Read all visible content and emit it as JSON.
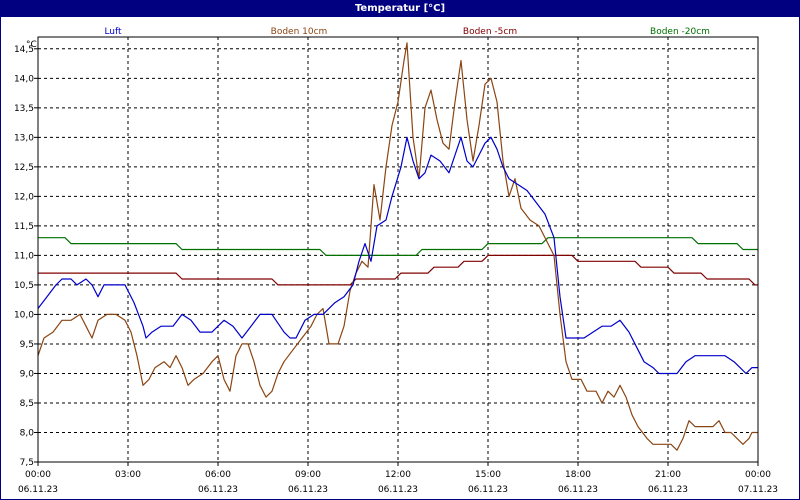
{
  "window": {
    "title": "Temperatur [°C]"
  },
  "chart_data": {
    "type": "line",
    "title": "Temperatur [°C]",
    "ylabel": "°C",
    "ylim": [
      7.5,
      14.7
    ],
    "yticks": [
      "14,5",
      "14,0",
      "13,5",
      "13,0",
      "12,5",
      "12,0",
      "11,5",
      "11,0",
      "10,5",
      "10,0",
      "9,5",
      "9,0",
      "8,5",
      "8,0",
      "7,5"
    ],
    "xlim": [
      0,
      24
    ],
    "xticks": [
      {
        "time": "00:00",
        "date": "06.11.23"
      },
      {
        "time": "03:00",
        "date": ""
      },
      {
        "time": "06:00",
        "date": "06.11.23"
      },
      {
        "time": "09:00",
        "date": "06.11.23"
      },
      {
        "time": "12:00",
        "date": "06.11.23"
      },
      {
        "time": "15:00",
        "date": "06.11.23"
      },
      {
        "time": "18:00",
        "date": "06.11.23"
      },
      {
        "time": "21:00",
        "date": "06.11.23"
      },
      {
        "time": "00:00",
        "date": "07.11.23"
      }
    ],
    "grid": true,
    "legend_position": "top",
    "series": [
      {
        "name": "Luft",
        "color": "#0000cc",
        "points": [
          [
            0,
            10.1
          ],
          [
            0.3,
            10.3
          ],
          [
            0.6,
            10.5
          ],
          [
            0.8,
            10.6
          ],
          [
            1.1,
            10.6
          ],
          [
            1.3,
            10.5
          ],
          [
            1.6,
            10.6
          ],
          [
            1.8,
            10.5
          ],
          [
            2.0,
            10.3
          ],
          [
            2.2,
            10.5
          ],
          [
            2.6,
            10.5
          ],
          [
            2.9,
            10.5
          ],
          [
            3.0,
            10.4
          ],
          [
            3.2,
            10.2
          ],
          [
            3.5,
            9.8
          ],
          [
            3.6,
            9.6
          ],
          [
            3.8,
            9.7
          ],
          [
            4.1,
            9.8
          ],
          [
            4.5,
            9.8
          ],
          [
            4.8,
            10.0
          ],
          [
            5.1,
            9.9
          ],
          [
            5.4,
            9.7
          ],
          [
            5.8,
            9.7
          ],
          [
            6.2,
            9.9
          ],
          [
            6.5,
            9.8
          ],
          [
            6.8,
            9.6
          ],
          [
            7.1,
            9.8
          ],
          [
            7.4,
            10.0
          ],
          [
            7.8,
            10.0
          ],
          [
            8.2,
            9.7
          ],
          [
            8.4,
            9.6
          ],
          [
            8.6,
            9.6
          ],
          [
            8.9,
            9.9
          ],
          [
            9.2,
            10.0
          ],
          [
            9.5,
            10.0
          ],
          [
            9.9,
            10.2
          ],
          [
            10.2,
            10.3
          ],
          [
            10.5,
            10.5
          ],
          [
            10.7,
            10.9
          ],
          [
            10.9,
            11.2
          ],
          [
            11.1,
            10.9
          ],
          [
            11.3,
            11.5
          ],
          [
            11.6,
            11.6
          ],
          [
            11.8,
            12.0
          ],
          [
            12.1,
            12.5
          ],
          [
            12.3,
            13.0
          ],
          [
            12.5,
            12.6
          ],
          [
            12.7,
            12.3
          ],
          [
            12.9,
            12.4
          ],
          [
            13.1,
            12.7
          ],
          [
            13.4,
            12.6
          ],
          [
            13.7,
            12.4
          ],
          [
            13.9,
            12.7
          ],
          [
            14.1,
            13.0
          ],
          [
            14.3,
            12.6
          ],
          [
            14.5,
            12.5
          ],
          [
            14.7,
            12.7
          ],
          [
            14.9,
            12.9
          ],
          [
            15.1,
            13.0
          ],
          [
            15.3,
            12.8
          ],
          [
            15.5,
            12.5
          ],
          [
            15.7,
            12.3
          ],
          [
            16.0,
            12.2
          ],
          [
            16.3,
            12.1
          ],
          [
            16.6,
            11.9
          ],
          [
            16.9,
            11.7
          ],
          [
            17.2,
            11.3
          ],
          [
            17.4,
            10.3
          ],
          [
            17.6,
            9.6
          ],
          [
            17.9,
            9.6
          ],
          [
            18.2,
            9.6
          ],
          [
            18.5,
            9.7
          ],
          [
            18.8,
            9.8
          ],
          [
            19.1,
            9.8
          ],
          [
            19.4,
            9.9
          ],
          [
            19.7,
            9.7
          ],
          [
            20.0,
            9.4
          ],
          [
            20.2,
            9.2
          ],
          [
            20.5,
            9.1
          ],
          [
            20.7,
            9.0
          ],
          [
            21.0,
            9.0
          ],
          [
            21.3,
            9.0
          ],
          [
            21.6,
            9.2
          ],
          [
            21.9,
            9.3
          ],
          [
            22.3,
            9.3
          ],
          [
            22.6,
            9.3
          ],
          [
            22.9,
            9.3
          ],
          [
            23.2,
            9.2
          ],
          [
            23.4,
            9.1
          ],
          [
            23.6,
            9.0
          ],
          [
            23.8,
            9.1
          ],
          [
            24,
            9.1
          ]
        ]
      },
      {
        "name": "Boden 10cm",
        "color": "#8b4513",
        "points": [
          [
            0,
            9.3
          ],
          [
            0.2,
            9.6
          ],
          [
            0.5,
            9.7
          ],
          [
            0.8,
            9.9
          ],
          [
            1.1,
            9.9
          ],
          [
            1.4,
            10.0
          ],
          [
            1.6,
            9.8
          ],
          [
            1.8,
            9.6
          ],
          [
            2.0,
            9.9
          ],
          [
            2.3,
            10.0
          ],
          [
            2.6,
            10.0
          ],
          [
            2.9,
            9.9
          ],
          [
            3.1,
            9.7
          ],
          [
            3.3,
            9.3
          ],
          [
            3.5,
            8.8
          ],
          [
            3.7,
            8.9
          ],
          [
            3.9,
            9.1
          ],
          [
            4.2,
            9.2
          ],
          [
            4.4,
            9.1
          ],
          [
            4.6,
            9.3
          ],
          [
            4.8,
            9.1
          ],
          [
            5.0,
            8.8
          ],
          [
            5.2,
            8.9
          ],
          [
            5.5,
            9.0
          ],
          [
            5.8,
            9.2
          ],
          [
            6.0,
            9.3
          ],
          [
            6.2,
            8.9
          ],
          [
            6.4,
            8.7
          ],
          [
            6.6,
            9.3
          ],
          [
            6.8,
            9.5
          ],
          [
            7.0,
            9.5
          ],
          [
            7.2,
            9.2
          ],
          [
            7.4,
            8.8
          ],
          [
            7.6,
            8.6
          ],
          [
            7.8,
            8.7
          ],
          [
            8.0,
            9.0
          ],
          [
            8.2,
            9.2
          ],
          [
            8.5,
            9.4
          ],
          [
            8.8,
            9.6
          ],
          [
            9.1,
            9.8
          ],
          [
            9.3,
            10.0
          ],
          [
            9.5,
            10.1
          ],
          [
            9.7,
            9.5
          ],
          [
            10.0,
            9.5
          ],
          [
            10.2,
            9.8
          ],
          [
            10.4,
            10.4
          ],
          [
            10.6,
            10.7
          ],
          [
            10.8,
            10.9
          ],
          [
            11.0,
            10.8
          ],
          [
            11.2,
            12.2
          ],
          [
            11.4,
            11.6
          ],
          [
            11.6,
            12.5
          ],
          [
            11.8,
            13.2
          ],
          [
            12.0,
            13.6
          ],
          [
            12.2,
            14.3
          ],
          [
            12.3,
            14.6
          ],
          [
            12.5,
            13.0
          ],
          [
            12.7,
            12.3
          ],
          [
            12.9,
            13.5
          ],
          [
            13.1,
            13.8
          ],
          [
            13.3,
            13.3
          ],
          [
            13.5,
            12.9
          ],
          [
            13.7,
            12.8
          ],
          [
            13.9,
            13.6
          ],
          [
            14.1,
            14.3
          ],
          [
            14.3,
            13.3
          ],
          [
            14.5,
            12.6
          ],
          [
            14.7,
            13.2
          ],
          [
            14.9,
            13.9
          ],
          [
            15.1,
            14.0
          ],
          [
            15.3,
            13.6
          ],
          [
            15.5,
            12.6
          ],
          [
            15.7,
            12.0
          ],
          [
            15.9,
            12.3
          ],
          [
            16.1,
            11.8
          ],
          [
            16.4,
            11.6
          ],
          [
            16.7,
            11.5
          ],
          [
            17.0,
            11.2
          ],
          [
            17.2,
            11.0
          ],
          [
            17.4,
            10.0
          ],
          [
            17.6,
            9.2
          ],
          [
            17.8,
            8.9
          ],
          [
            18.1,
            8.9
          ],
          [
            18.3,
            8.7
          ],
          [
            18.6,
            8.7
          ],
          [
            18.8,
            8.5
          ],
          [
            19.0,
            8.7
          ],
          [
            19.2,
            8.6
          ],
          [
            19.4,
            8.8
          ],
          [
            19.6,
            8.6
          ],
          [
            19.8,
            8.3
          ],
          [
            20.0,
            8.1
          ],
          [
            20.3,
            7.9
          ],
          [
            20.5,
            7.8
          ],
          [
            20.8,
            7.8
          ],
          [
            21.1,
            7.8
          ],
          [
            21.3,
            7.7
          ],
          [
            21.5,
            7.9
          ],
          [
            21.7,
            8.2
          ],
          [
            21.9,
            8.1
          ],
          [
            22.2,
            8.1
          ],
          [
            22.5,
            8.1
          ],
          [
            22.7,
            8.2
          ],
          [
            22.9,
            8.0
          ],
          [
            23.1,
            8.0
          ],
          [
            23.3,
            7.9
          ],
          [
            23.5,
            7.8
          ],
          [
            23.7,
            7.9
          ],
          [
            23.8,
            8.0
          ],
          [
            24,
            8.0
          ]
        ]
      },
      {
        "name": "Boden -5cm",
        "color": "#800000",
        "points": [
          [
            0,
            10.7
          ],
          [
            4.6,
            10.7
          ],
          [
            4.8,
            10.6
          ],
          [
            7.8,
            10.6
          ],
          [
            8.0,
            10.5
          ],
          [
            10.4,
            10.5
          ],
          [
            10.6,
            10.6
          ],
          [
            11.9,
            10.6
          ],
          [
            12.1,
            10.7
          ],
          [
            13.0,
            10.7
          ],
          [
            13.2,
            10.8
          ],
          [
            14.0,
            10.8
          ],
          [
            14.2,
            10.9
          ],
          [
            14.8,
            10.9
          ],
          [
            15.0,
            11.0
          ],
          [
            17.8,
            11.0
          ],
          [
            18.0,
            10.9
          ],
          [
            19.9,
            10.9
          ],
          [
            20.1,
            10.8
          ],
          [
            21.0,
            10.8
          ],
          [
            21.2,
            10.7
          ],
          [
            22.1,
            10.7
          ],
          [
            22.3,
            10.6
          ],
          [
            23.7,
            10.6
          ],
          [
            23.9,
            10.5
          ],
          [
            24,
            10.5
          ]
        ]
      },
      {
        "name": "Boden -20cm",
        "color": "#007000",
        "points": [
          [
            0,
            11.3
          ],
          [
            0.9,
            11.3
          ],
          [
            1.1,
            11.2
          ],
          [
            4.6,
            11.2
          ],
          [
            4.8,
            11.1
          ],
          [
            9.4,
            11.1
          ],
          [
            9.6,
            11.0
          ],
          [
            12.6,
            11.0
          ],
          [
            12.8,
            11.1
          ],
          [
            14.8,
            11.1
          ],
          [
            15.0,
            11.2
          ],
          [
            16.8,
            11.2
          ],
          [
            17.0,
            11.3
          ],
          [
            21.8,
            11.3
          ],
          [
            22.0,
            11.2
          ],
          [
            23.3,
            11.2
          ],
          [
            23.5,
            11.1
          ],
          [
            24,
            11.1
          ]
        ]
      }
    ]
  }
}
